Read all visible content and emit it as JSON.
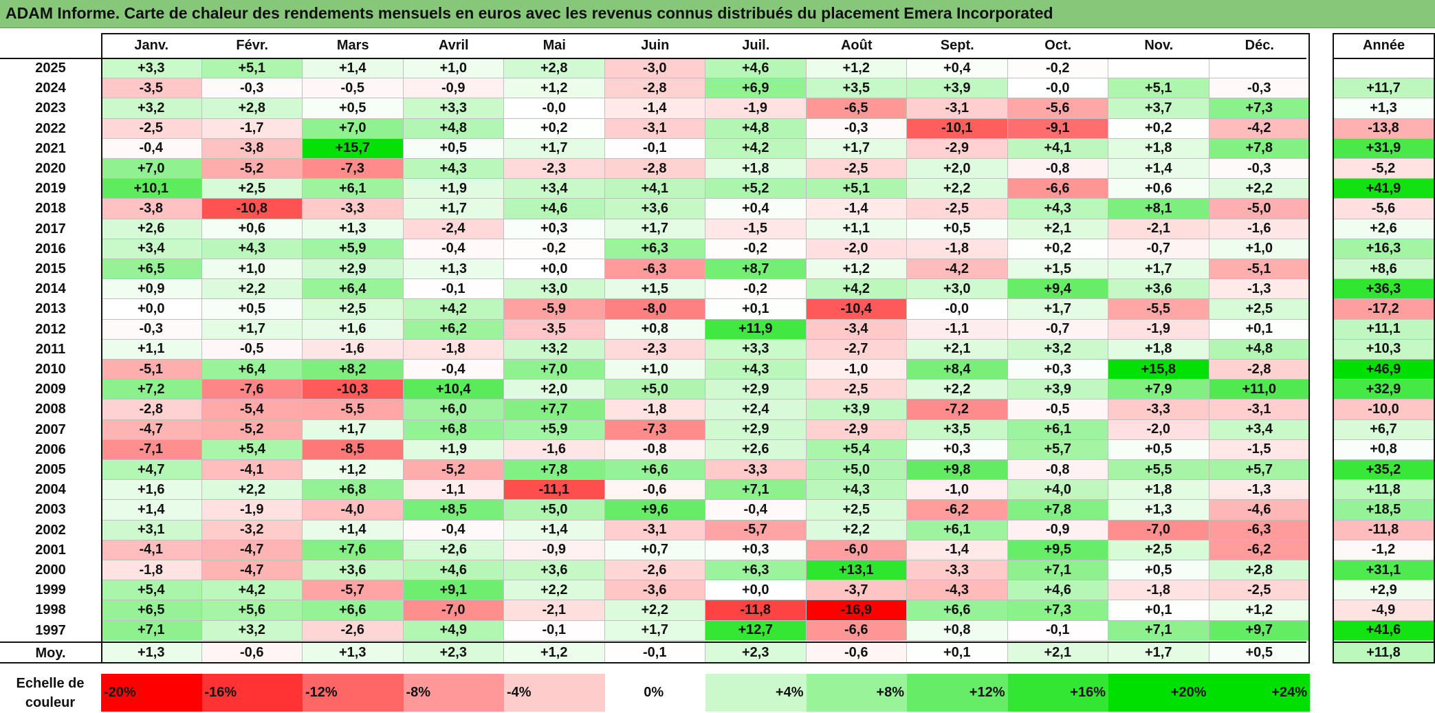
{
  "title": "ADAM Informe. Carte de chaleur des rendements mensuels en euros avec les revenus connus distribués du placement Emera Incorporated",
  "colors": {
    "title_bg": "#86c77a",
    "neg_max": "#ff0000",
    "pos_max": "#00e000",
    "zero": "#ffffff"
  },
  "chart_data": {
    "type": "heatmap",
    "title": "ADAM Informe. Carte de chaleur des rendements mensuels en euros avec les revenus connus distribués du placement Emera Incorporated",
    "months": [
      "Janv.",
      "Févr.",
      "Mars",
      "Avril",
      "Mai",
      "Juin",
      "Juil.",
      "Août",
      "Sept.",
      "Oct.",
      "Nov.",
      "Déc."
    ],
    "year_header": "Année",
    "rows": [
      {
        "year": "2025",
        "values": [
          "+3,3",
          "+5,1",
          "+1,4",
          "+1,0",
          "+2,8",
          "-3,0",
          "+4,6",
          "+1,2",
          "+0,4",
          "-0,2",
          "",
          ""
        ],
        "annual": ""
      },
      {
        "year": "2024",
        "values": [
          "-3,5",
          "-0,3",
          "-0,5",
          "-0,9",
          "+1,2",
          "-2,8",
          "+6,9",
          "+3,5",
          "+3,9",
          "-0,0",
          "+5,1",
          "-0,3"
        ],
        "annual": "+11,7"
      },
      {
        "year": "2023",
        "values": [
          "+3,2",
          "+2,8",
          "+0,5",
          "+3,3",
          "-0,0",
          "-1,4",
          "-1,9",
          "-6,5",
          "-3,1",
          "-5,6",
          "+3,7",
          "+7,3"
        ],
        "annual": "+1,3"
      },
      {
        "year": "2022",
        "values": [
          "-2,5",
          "-1,7",
          "+7,0",
          "+4,8",
          "+0,2",
          "-3,1",
          "+4,8",
          "-0,3",
          "-10,1",
          "-9,1",
          "+0,2",
          "-4,2"
        ],
        "annual": "-13,8"
      },
      {
        "year": "2021",
        "values": [
          "-0,4",
          "-3,8",
          "+15,7",
          "+0,5",
          "+1,7",
          "-0,1",
          "+4,2",
          "+1,7",
          "-2,9",
          "+4,1",
          "+1,8",
          "+7,8"
        ],
        "annual": "+31,9"
      },
      {
        "year": "2020",
        "values": [
          "+7,0",
          "-5,2",
          "-7,3",
          "+4,3",
          "-2,3",
          "-2,8",
          "+1,8",
          "-2,5",
          "+2,0",
          "-0,8",
          "+1,4",
          "-0,3"
        ],
        "annual": "-5,2"
      },
      {
        "year": "2019",
        "values": [
          "+10,1",
          "+2,5",
          "+6,1",
          "+1,9",
          "+3,4",
          "+4,1",
          "+5,2",
          "+5,1",
          "+2,2",
          "-6,6",
          "+0,6",
          "+2,2"
        ],
        "annual": "+41,9"
      },
      {
        "year": "2018",
        "values": [
          "-3,8",
          "-10,8",
          "-3,3",
          "+1,7",
          "+4,6",
          "+3,6",
          "+0,4",
          "-1,4",
          "-2,5",
          "+4,3",
          "+8,1",
          "-5,0"
        ],
        "annual": "-5,6"
      },
      {
        "year": "2017",
        "values": [
          "+2,6",
          "+0,6",
          "+1,3",
          "-2,4",
          "+0,3",
          "+1,7",
          "-1,5",
          "+1,1",
          "+0,5",
          "+2,1",
          "-2,1",
          "-1,6"
        ],
        "annual": "+2,6"
      },
      {
        "year": "2016",
        "values": [
          "+3,4",
          "+4,3",
          "+5,9",
          "-0,4",
          "-0,2",
          "+6,3",
          "-0,2",
          "-2,0",
          "-1,8",
          "+0,2",
          "-0,7",
          "+1,0"
        ],
        "annual": "+16,3"
      },
      {
        "year": "2015",
        "values": [
          "+6,5",
          "+1,0",
          "+2,9",
          "+1,3",
          "+0,0",
          "-6,3",
          "+8,7",
          "+1,2",
          "-4,2",
          "+1,5",
          "+1,7",
          "-5,1"
        ],
        "annual": "+8,6"
      },
      {
        "year": "2014",
        "values": [
          "+0,9",
          "+2,2",
          "+6,4",
          "-0,1",
          "+3,0",
          "+1,5",
          "-0,2",
          "+4,2",
          "+3,0",
          "+9,4",
          "+3,6",
          "-1,3"
        ],
        "annual": "+36,3"
      },
      {
        "year": "2013",
        "values": [
          "+0,0",
          "+0,5",
          "+2,5",
          "+4,2",
          "-5,9",
          "-8,0",
          "+0,1",
          "-10,4",
          "-0,0",
          "+1,7",
          "-5,5",
          "+2,5"
        ],
        "annual": "-17,2"
      },
      {
        "year": "2012",
        "values": [
          "-0,3",
          "+1,7",
          "+1,6",
          "+6,2",
          "-3,5",
          "+0,8",
          "+11,9",
          "-3,4",
          "-1,1",
          "-0,7",
          "-1,9",
          "+0,1"
        ],
        "annual": "+11,1"
      },
      {
        "year": "2011",
        "values": [
          "+1,1",
          "-0,5",
          "-1,6",
          "-1,8",
          "+3,2",
          "-2,3",
          "+3,3",
          "-2,7",
          "+2,1",
          "+3,2",
          "+1,8",
          "+4,8"
        ],
        "annual": "+10,3"
      },
      {
        "year": "2010",
        "values": [
          "-5,1",
          "+6,4",
          "+8,2",
          "-0,4",
          "+7,0",
          "+1,0",
          "+4,3",
          "-1,0",
          "+8,4",
          "+0,3",
          "+15,8",
          "-2,8"
        ],
        "annual": "+46,9"
      },
      {
        "year": "2009",
        "values": [
          "+7,2",
          "-7,6",
          "-10,3",
          "+10,4",
          "+2,0",
          "+5,0",
          "+2,9",
          "-2,5",
          "+2,2",
          "+3,9",
          "+7,9",
          "+11,0"
        ],
        "annual": "+32,9"
      },
      {
        "year": "2008",
        "values": [
          "-2,8",
          "-5,4",
          "-5,5",
          "+6,0",
          "+7,7",
          "-1,8",
          "+2,4",
          "+3,9",
          "-7,2",
          "-0,5",
          "-3,3",
          "-3,1"
        ],
        "annual": "-10,0"
      },
      {
        "year": "2007",
        "values": [
          "-4,7",
          "-5,2",
          "+1,7",
          "+6,8",
          "+5,9",
          "-7,3",
          "+2,9",
          "-2,9",
          "+3,5",
          "+6,1",
          "-2,0",
          "+3,4"
        ],
        "annual": "+6,7"
      },
      {
        "year": "2006",
        "values": [
          "-7,1",
          "+5,4",
          "-8,5",
          "+1,9",
          "-1,6",
          "-0,8",
          "+2,6",
          "+5,4",
          "+0,3",
          "+5,7",
          "+0,5",
          "-1,5"
        ],
        "annual": "+0,8"
      },
      {
        "year": "2005",
        "values": [
          "+4,7",
          "-4,1",
          "+1,2",
          "-5,2",
          "+7,8",
          "+6,6",
          "-3,3",
          "+5,0",
          "+9,8",
          "-0,8",
          "+5,5",
          "+5,7"
        ],
        "annual": "+35,2"
      },
      {
        "year": "2004",
        "values": [
          "+1,6",
          "+2,2",
          "+6,8",
          "-1,1",
          "-11,1",
          "-0,6",
          "+7,1",
          "+4,3",
          "-1,0",
          "+4,0",
          "+1,8",
          "-1,3"
        ],
        "annual": "+11,8"
      },
      {
        "year": "2003",
        "values": [
          "+1,4",
          "-1,9",
          "-4,0",
          "+8,5",
          "+5,0",
          "+9,6",
          "-0,4",
          "+2,5",
          "-6,2",
          "+7,8",
          "+1,3",
          "-4,6"
        ],
        "annual": "+18,5"
      },
      {
        "year": "2002",
        "values": [
          "+3,1",
          "-3,2",
          "+1,4",
          "-0,4",
          "+1,4",
          "-3,1",
          "-5,7",
          "+2,2",
          "+6,1",
          "-0,9",
          "-7,0",
          "-6,3"
        ],
        "annual": "-11,8"
      },
      {
        "year": "2001",
        "values": [
          "-4,1",
          "-4,7",
          "+7,6",
          "+2,6",
          "-0,9",
          "+0,7",
          "+0,3",
          "-6,0",
          "-1,4",
          "+9,5",
          "+2,5",
          "-6,2"
        ],
        "annual": "-1,2"
      },
      {
        "year": "2000",
        "values": [
          "-1,8",
          "-4,7",
          "+3,6",
          "+4,6",
          "+3,6",
          "-2,6",
          "+6,3",
          "+13,1",
          "-3,3",
          "+7,1",
          "+0,5",
          "+2,8"
        ],
        "annual": "+31,1"
      },
      {
        "year": "1999",
        "values": [
          "+5,4",
          "+4,2",
          "-5,7",
          "+9,1",
          "+2,2",
          "-3,6",
          "+0,0",
          "-3,7",
          "-4,3",
          "+4,6",
          "-1,8",
          "-2,5"
        ],
        "annual": "+2,9"
      },
      {
        "year": "1998",
        "values": [
          "+6,5",
          "+5,6",
          "+6,6",
          "-7,0",
          "-2,1",
          "+2,2",
          "-11,8",
          "-16,9",
          "+6,6",
          "+7,3",
          "+0,1",
          "+1,2"
        ],
        "annual": "-4,9"
      },
      {
        "year": "1997",
        "values": [
          "+7,1",
          "+3,2",
          "-2,6",
          "+4,9",
          "-0,1",
          "+1,7",
          "+12,7",
          "-6,6",
          "+0,8",
          "-0,1",
          "+7,1",
          "+9,7"
        ],
        "annual": "+41,6"
      }
    ],
    "average": {
      "label": "Moy.",
      "values": [
        "+1,3",
        "-0,6",
        "+1,3",
        "+2,3",
        "+1,2",
        "-0,1",
        "+2,3",
        "-0,6",
        "+0,1",
        "+2,1",
        "+1,7",
        "+0,5"
      ],
      "annual": "+11,8"
    },
    "scale": {
      "label": "Echelle de couleur",
      "steps": [
        "-20%",
        "-16%",
        "-12%",
        "-8%",
        "-4%",
        "0%",
        "+4%",
        "+8%",
        "+12%",
        "+16%",
        "+20%",
        "+24%"
      ]
    }
  }
}
